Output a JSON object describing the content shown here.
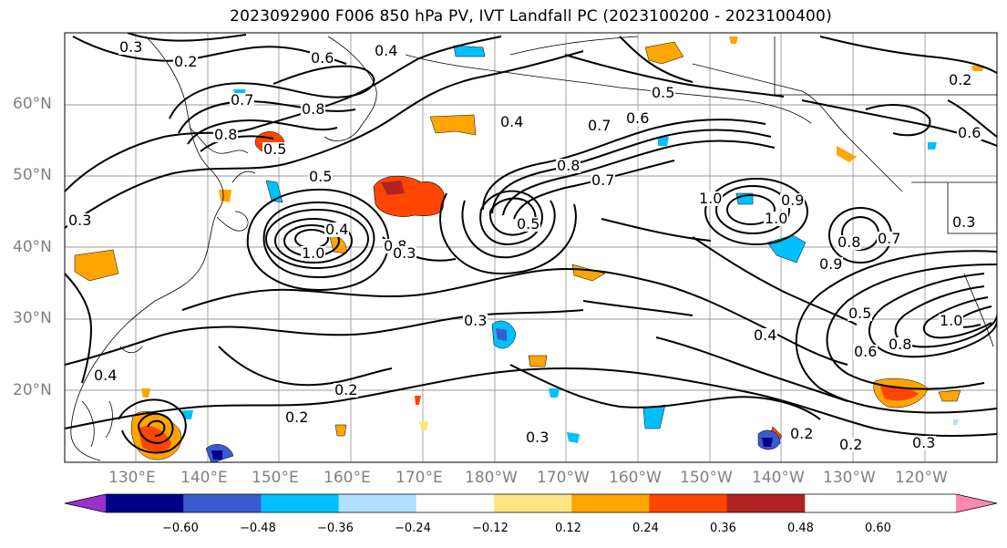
{
  "title": "2023092900 F006 850 hPa PV, IVT Landfall PC (2023100200 - 2023100400)",
  "lat_labels": [
    "60°N",
    "50°N",
    "40°N",
    "30°N",
    "20°N"
  ],
  "lon_labels": [
    "130°E",
    "140°E",
    "150°E",
    "160°E",
    "170°E",
    "180°W",
    "170°W",
    "160°W",
    "150°W",
    "140°W",
    "130°W",
    "120°W"
  ],
  "colorbar": {
    "ticks": [
      "−0.60",
      "−0.48",
      "−0.36",
      "−0.24",
      "−0.12",
      "0.12",
      "0.24",
      "0.36",
      "0.48",
      "0.60"
    ],
    "colors": [
      "#9932cc",
      "#00008b",
      "#3a5bd0",
      "#00bfff",
      "#b0e0ff",
      "#ffffff",
      "#ffe680",
      "#ffa500",
      "#ff4500",
      "#b22222",
      "#ff88b0"
    ]
  },
  "contour_labels": [
    "0.3",
    "0.2",
    "0.6",
    "0.4",
    "0.7",
    "0.8",
    "0.8",
    "0.5",
    "0.4",
    "0.7",
    "0.6",
    "0.5",
    "0.8",
    "0.7",
    "0.5",
    "0.8",
    "1.0",
    "0.4",
    "0.5",
    "0.3",
    "1.0",
    "0.9",
    "1.0",
    "0.3",
    "0.8",
    "0.6",
    "0.5",
    "0.9",
    "0.7",
    "0.8",
    "0.6",
    "1.0",
    "0.3",
    "0.4",
    "0.2",
    "0.2",
    "0.3",
    "0.2",
    "0.2",
    "0.3",
    "0.4",
    "0.2",
    "0.3",
    "0.4"
  ]
}
